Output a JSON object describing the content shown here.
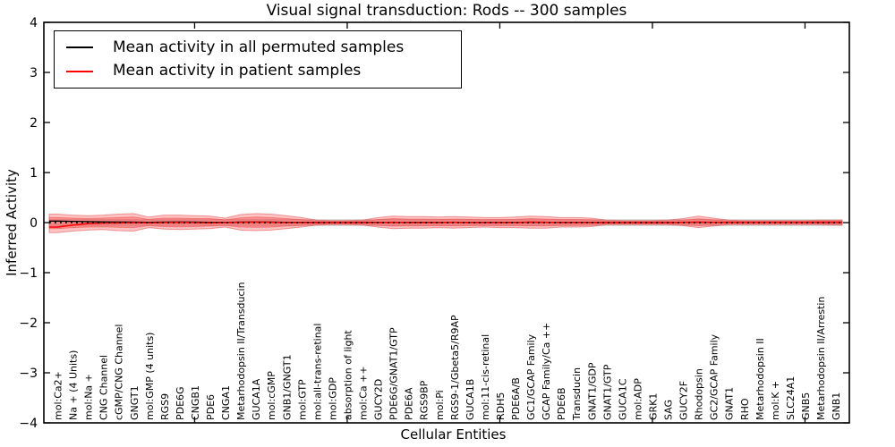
{
  "legend": {
    "entries": [
      {
        "label": "Mean activity in all permuted samples",
        "color": "#000000"
      },
      {
        "label": "Mean activity in patient samples",
        "color": "#ff0000"
      }
    ]
  },
  "chart_data": {
    "type": "line",
    "title": "Visual signal transduction: Rods -- 300 samples",
    "xlabel": "Cellular Entities",
    "ylabel": "Inferred Activity",
    "ylim": [
      -4,
      4
    ],
    "yticks": [
      -4,
      -3,
      -2,
      -1,
      0,
      1,
      2,
      3,
      4
    ],
    "xtick_indices": [
      9,
      19,
      29,
      39,
      49
    ],
    "grid": false,
    "legend_position": "upper left",
    "categories": [
      "mol:Ca2+",
      "Na + (4 Units)",
      "mol:Na +",
      "CNG Channel",
      "cGMP/CNG Channel",
      "GNGT1",
      "mol:GMP (4 units)",
      "RGS9",
      "PDE6G",
      "CNGB1",
      "PDE6",
      "CNGA1",
      "Metarhodopsin II/Transducin",
      "GUCA1A",
      "mol:cGMP",
      "GNB1/GNGT1",
      "mol:GTP",
      "mol:all-trans-retinal",
      "mol:GDP",
      "absorption of light",
      "mol:Ca ++",
      "GUCY2D",
      "PDE6G/GNAT1/GTP",
      "PDE6A",
      "RGS9BP",
      "mol:Pi",
      "RGS9-1/Gbeta5/R9AP",
      "GUCA1B",
      "mol:11-cis-retinal",
      "RDH5",
      "PDE6A/B",
      "GC1/GCAP Family",
      "GCAP Family/Ca ++",
      "PDE6B",
      "Transducin",
      "GNAT1/GDP",
      "GNAT1/GTP",
      "GUCA1C",
      "mol:ADP",
      "GRK1",
      "SAG",
      "GUCY2F",
      "Rhodopsin",
      "GC2/GCAP Family",
      "GNAT1",
      "RHO",
      "Metarhodopsin II",
      "mol:K +",
      "SLC24A1",
      "GNB5",
      "Metarhodopsin II/Arrestin",
      "GNB1"
    ],
    "series": [
      {
        "name": "Mean activity in all permuted samples",
        "color": "#000000",
        "style": "solid",
        "values": [
          0.03,
          0.025,
          0.02,
          0.015,
          0.012,
          0.01,
          0.008,
          0.01,
          0.012,
          0.01,
          0.008,
          0.005,
          0.01,
          0.012,
          0.01,
          0.008,
          0.005,
          0.003,
          0.002,
          0.002,
          0.003,
          0.005,
          0.008,
          0.006,
          0.005,
          0.004,
          0.005,
          0.004,
          0.003,
          0.004,
          0.005,
          0.006,
          0.005,
          0.004,
          0.003,
          0.003,
          0.002,
          0.002,
          0.002,
          0.002,
          0.002,
          0.003,
          0.005,
          0.003,
          0.002,
          0.002,
          0.002,
          0.002,
          0.002,
          0.002,
          0.002,
          0.002
        ]
      },
      {
        "name": "Mean activity in patient samples",
        "color": "#ff0000",
        "style": "solid",
        "values": [
          -0.09,
          -0.05,
          -0.02,
          -0.01,
          -0.005,
          0,
          -0.005,
          0,
          0.005,
          0,
          -0.005,
          0,
          0.005,
          0.01,
          0.005,
          0,
          0,
          0,
          0,
          0,
          0,
          0,
          0.005,
          0,
          0,
          0,
          0.005,
          0,
          0,
          0,
          0,
          0.01,
          0.005,
          0,
          0,
          0,
          0,
          0,
          0,
          0,
          0,
          0.005,
          0.01,
          0.005,
          0.005,
          0.005,
          0.005,
          0.005,
          0.005,
          0.005,
          0.008,
          0.008
        ]
      }
    ],
    "bands": {
      "patient_outer": {
        "fill": "rgba(255,40,40,0.28)",
        "edge": "rgba(220,50,50,0.45)",
        "top": [
          0.17,
          0.15,
          0.14,
          0.15,
          0.17,
          0.18,
          0.11,
          0.15,
          0.15,
          0.14,
          0.13,
          0.09,
          0.16,
          0.18,
          0.17,
          0.14,
          0.1,
          0.05,
          0.04,
          0.04,
          0.05,
          0.1,
          0.13,
          0.12,
          0.12,
          0.11,
          0.12,
          0.11,
          0.1,
          0.1,
          0.11,
          0.13,
          0.12,
          0.1,
          0.1,
          0.09,
          0.05,
          0.04,
          0.04,
          0.04,
          0.05,
          0.08,
          0.13,
          0.09,
          0.05,
          0.04,
          0.04,
          0.04,
          0.04,
          0.04,
          0.05,
          0.05
        ],
        "bottom": [
          -0.2,
          -0.17,
          -0.15,
          -0.14,
          -0.16,
          -0.17,
          -0.1,
          -0.13,
          -0.14,
          -0.13,
          -0.12,
          -0.09,
          -0.15,
          -0.16,
          -0.15,
          -0.12,
          -0.09,
          -0.05,
          -0.04,
          -0.04,
          -0.05,
          -0.09,
          -0.12,
          -0.11,
          -0.11,
          -0.1,
          -0.11,
          -0.1,
          -0.09,
          -0.1,
          -0.1,
          -0.11,
          -0.11,
          -0.09,
          -0.09,
          -0.08,
          -0.04,
          -0.04,
          -0.04,
          -0.04,
          -0.04,
          -0.06,
          -0.1,
          -0.07,
          -0.04,
          -0.04,
          -0.04,
          -0.04,
          -0.04,
          -0.04,
          -0.04,
          -0.05
        ]
      },
      "patient_inner": {
        "fill": "rgba(255,40,40,0.32)",
        "edge": "rgba(235,80,80,0.55)",
        "top": [
          0.1,
          0.09,
          0.08,
          0.09,
          0.1,
          0.11,
          0.065,
          0.09,
          0.09,
          0.08,
          0.08,
          0.055,
          0.095,
          0.11,
          0.1,
          0.08,
          0.06,
          0.03,
          0.025,
          0.025,
          0.03,
          0.06,
          0.08,
          0.07,
          0.07,
          0.065,
          0.07,
          0.065,
          0.06,
          0.06,
          0.065,
          0.08,
          0.07,
          0.06,
          0.06,
          0.055,
          0.03,
          0.025,
          0.025,
          0.025,
          0.03,
          0.05,
          0.075,
          0.055,
          0.03,
          0.025,
          0.025,
          0.025,
          0.025,
          0.025,
          0.03,
          0.03
        ],
        "bottom": [
          -0.12,
          -0.1,
          -0.09,
          -0.085,
          -0.095,
          -0.1,
          -0.06,
          -0.08,
          -0.085,
          -0.08,
          -0.07,
          -0.055,
          -0.09,
          -0.095,
          -0.09,
          -0.07,
          -0.055,
          -0.03,
          -0.025,
          -0.025,
          -0.03,
          -0.055,
          -0.07,
          -0.065,
          -0.065,
          -0.06,
          -0.065,
          -0.06,
          -0.055,
          -0.06,
          -0.06,
          -0.065,
          -0.065,
          -0.055,
          -0.055,
          -0.05,
          -0.025,
          -0.025,
          -0.025,
          -0.025,
          -0.025,
          -0.04,
          -0.06,
          -0.045,
          -0.025,
          -0.025,
          -0.025,
          -0.025,
          -0.025,
          -0.025,
          -0.025,
          -0.03
        ]
      },
      "permuted_range": {
        "halfwidth": 0.055,
        "fill": "#e9e9e9",
        "edge": "#c4c4c4"
      }
    },
    "zero_line": {
      "value": 0,
      "style": "dotted",
      "color": "#000000"
    }
  }
}
